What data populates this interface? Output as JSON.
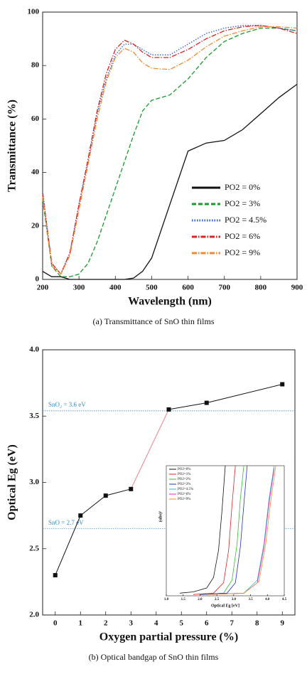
{
  "chart_data": [
    {
      "type": "line",
      "xlabel": "Wavelength (nm)",
      "ylabel": "Transmittance (%)",
      "caption": "(a) Transmittance of SnO thin films",
      "xlim": [
        200,
        900
      ],
      "ylim": [
        0,
        100
      ],
      "xticks": [
        200,
        300,
        400,
        500,
        600,
        700,
        800,
        900
      ],
      "yticks": [
        0,
        20,
        40,
        60,
        80,
        100
      ],
      "x": [
        200,
        225,
        250,
        275,
        300,
        325,
        350,
        375,
        400,
        425,
        450,
        475,
        500,
        550,
        600,
        650,
        700,
        750,
        800,
        850,
        900
      ],
      "series": [
        {
          "name": "PO2 = 0%",
          "color": "#111111",
          "dash": "solid",
          "values": [
            3,
            1,
            1,
            0,
            0,
            0,
            0,
            0,
            0,
            0,
            0.5,
            3,
            8,
            28,
            48,
            51,
            52,
            56,
            62,
            68,
            73
          ]
        },
        {
          "name": "PO2 = 3%",
          "color": "#1a9a2a",
          "dash": "dashed",
          "values": [
            30,
            5,
            1,
            1,
            2,
            6,
            14,
            24,
            34,
            44,
            54,
            63,
            67,
            69,
            75,
            83,
            89,
            92,
            94,
            94,
            93
          ]
        },
        {
          "name": "PO2 = 4.5%",
          "color": "#2a5fd0",
          "dash": "dotted",
          "values": [
            33,
            6,
            2,
            10,
            28,
            44,
            62,
            75,
            84,
            88,
            88,
            86,
            84,
            84,
            88,
            92,
            94,
            95,
            95,
            94,
            93
          ]
        },
        {
          "name": "PO2 = 6%",
          "color": "#e02020",
          "dash": "dashdot",
          "values": [
            32,
            6,
            2,
            10,
            28,
            45,
            63,
            77,
            86,
            89.5,
            88,
            85,
            83,
            83,
            86,
            90,
            93,
            94.5,
            95,
            94,
            92
          ]
        },
        {
          "name": "PO2 = 9%",
          "color": "#f08a30",
          "dash": "dashdot",
          "values": [
            31,
            5,
            2,
            9,
            26,
            43,
            60,
            74,
            83,
            86.5,
            85,
            81,
            79,
            78.5,
            82,
            87,
            91,
            93,
            94.5,
            94.5,
            94
          ]
        }
      ],
      "legend": "lower-right"
    },
    {
      "type": "line",
      "xlabel": "Oxygen partial pressure (%)",
      "ylabel": "Optical Eg (eV)",
      "caption": "(b) Optical bandgap of SnO thin films",
      "xlim": [
        -0.5,
        9.5
      ],
      "ylim": [
        2,
        4
      ],
      "xticks": [
        0,
        1,
        2,
        3,
        4,
        5,
        6,
        7,
        8,
        9
      ],
      "yticks": [
        {
          "value": 2,
          "label": "2.0"
        },
        2.5,
        {
          "value": 3,
          "label": "3.0"
        },
        3.5,
        {
          "value": 4,
          "label": "4.0"
        }
      ],
      "x": [
        0,
        1,
        2,
        3,
        4.5,
        6,
        9
      ],
      "series": [
        {
          "color": "#111111",
          "values": [
            2.3,
            2.75,
            2.9,
            2.95,
            3.55,
            3.6,
            3.74
          ],
          "segment_colors": [
            "#111111",
            "#111111",
            "#111111",
            "#f08080",
            "#111111",
            "#111111"
          ]
        }
      ],
      "reference_lines": [
        {
          "value": 3.54,
          "label": "SnO₂ = 3.6 eV",
          "color": "#3c8dc4"
        },
        {
          "value": 2.65,
          "label": "SnO = 2.7 eV",
          "color": "#3c8dc4"
        }
      ]
    },
    {
      "type": "line",
      "xlabel": "Optical Eg [eV]",
      "ylabel": "(αhν)²",
      "xlim": [
        1,
        4.5
      ],
      "ylim": [
        0,
        100
      ],
      "xticks": [
        {
          "value": 1,
          "label": "1.0"
        },
        1.5,
        {
          "value": 2,
          "label": "2.0"
        },
        2.5,
        {
          "value": 3,
          "label": "3.0"
        },
        3.5,
        {
          "value": 4,
          "label": "4.0"
        },
        4.5
      ],
      "series": [
        {
          "name": "PO2=0%",
          "color": "#111111",
          "x": [
            1.4,
            1.8,
            2.2,
            2.4,
            2.55,
            2.65,
            2.75
          ],
          "values": [
            2,
            3,
            6,
            14,
            35,
            65,
            100
          ]
        },
        {
          "name": "PO2=1%",
          "color": "#e02020",
          "x": [
            1.8,
            2.4,
            2.7,
            2.85,
            2.95,
            3.05
          ],
          "values": [
            1,
            2,
            10,
            35,
            70,
            100
          ]
        },
        {
          "name": "PO2=2%",
          "color": "#30c030",
          "x": [
            2.0,
            2.7,
            2.95,
            3.1,
            3.2,
            3.3
          ],
          "values": [
            1,
            2,
            12,
            40,
            75,
            100
          ]
        },
        {
          "name": "PO2=3%",
          "color": "#2030c0",
          "x": [
            2.0,
            2.8,
            3.05,
            3.2,
            3.3,
            3.4
          ],
          "values": [
            1,
            2,
            10,
            38,
            70,
            100
          ]
        },
        {
          "name": "PO2=4.5%",
          "color": "#20c0d0",
          "x": [
            2.2,
            3.3,
            3.7,
            3.9,
            4.05,
            4.2
          ],
          "values": [
            1,
            2,
            12,
            40,
            75,
            100
          ]
        },
        {
          "name": "PO2=6%",
          "color": "#e020c0",
          "x": [
            2.2,
            3.3,
            3.7,
            3.9,
            4.05,
            4.2
          ],
          "values": [
            1,
            2,
            10,
            38,
            72,
            98
          ]
        },
        {
          "name": "PO2=9%",
          "color": "#f08a30",
          "x": [
            2.2,
            3.3,
            3.75,
            3.95,
            4.1,
            4.25
          ],
          "values": [
            1,
            2,
            11,
            40,
            73,
            100
          ]
        }
      ],
      "legend": "upper-left"
    }
  ]
}
